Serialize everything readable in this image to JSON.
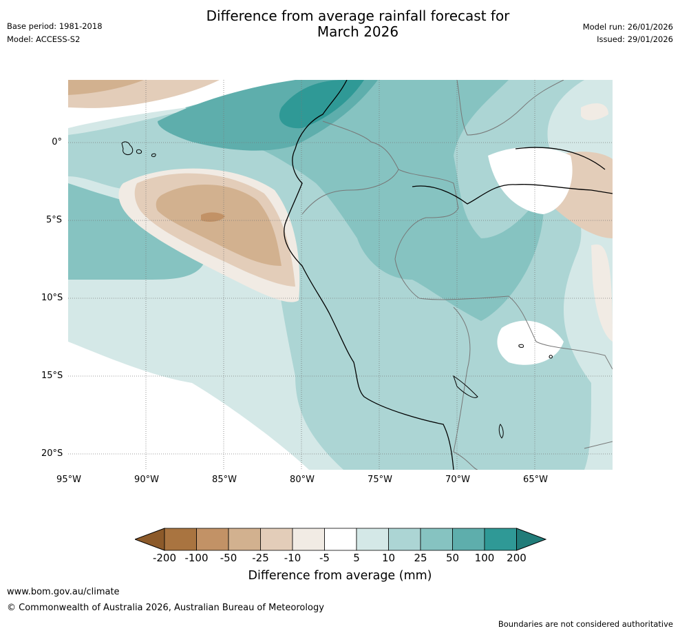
{
  "header": {
    "title_line1": "Difference from average rainfall forecast for",
    "title_line2": "March 2026",
    "base_period": "Base period: 1981-2018",
    "model": "Model: ACCESS-S2",
    "model_run": "Model run: 26/01/2026",
    "issued": "Issued: 29/01/2026"
  },
  "axes": {
    "y_ticks": [
      "0°",
      "5°S",
      "10°S",
      "15°S",
      "20°S"
    ],
    "x_ticks": [
      "95°W",
      "90°W",
      "85°W",
      "80°W",
      "75°W",
      "70°W",
      "65°W"
    ]
  },
  "legend": {
    "ticks": [
      "-200",
      "-100",
      "-50",
      "-25",
      "-10",
      "-5",
      "5",
      "10",
      "25",
      "50",
      "100",
      "200"
    ],
    "label": "Difference from average (mm)",
    "colors": [
      "#8c5a2a",
      "#a97440",
      "#c29266",
      "#d2b18f",
      "#e3cdb9",
      "#f1ebe4",
      "#ffffff",
      "#d4e8e7",
      "#acd5d4",
      "#86c3c1",
      "#5eaeac",
      "#2f9996",
      "#217c79"
    ]
  },
  "footer": {
    "url": "www.bom.gov.au/climate",
    "copyright": "© Commonwealth of Australia 2026, Australian Bureau of Meteorology",
    "disclaimer": "Boundaries are not considered authoritative"
  }
}
